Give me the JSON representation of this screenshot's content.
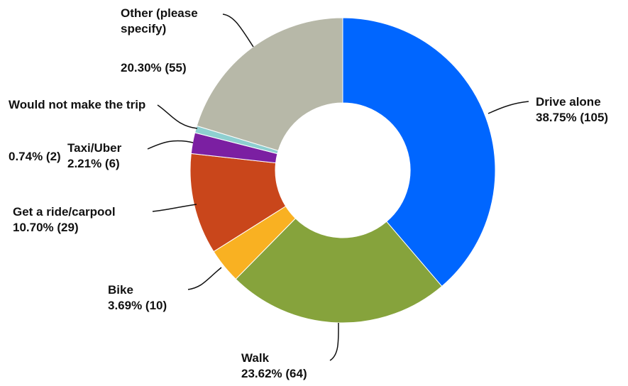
{
  "chart_data": {
    "type": "donut",
    "categories": [
      "Drive alone",
      "Walk",
      "Bike",
      "Get a ride/carpool",
      "Taxi/Uber",
      "Would not make the trip",
      "Other (please specify)"
    ],
    "values": [
      38.75,
      23.62,
      3.69,
      10.7,
      2.21,
      0.74,
      20.3
    ],
    "value_labels": [
      "38.75% (105)",
      "23.62% (64)",
      "3.69% (10)",
      "10.70% (29)",
      "2.21% (6)",
      "0.74% (2)",
      "20.30% (55)"
    ],
    "colors": [
      "#0066ff",
      "#86a33c",
      "#f9b122",
      "#c9461b",
      "#7b1fa2",
      "#8ecfd0",
      "#b7b8a8"
    ]
  }
}
